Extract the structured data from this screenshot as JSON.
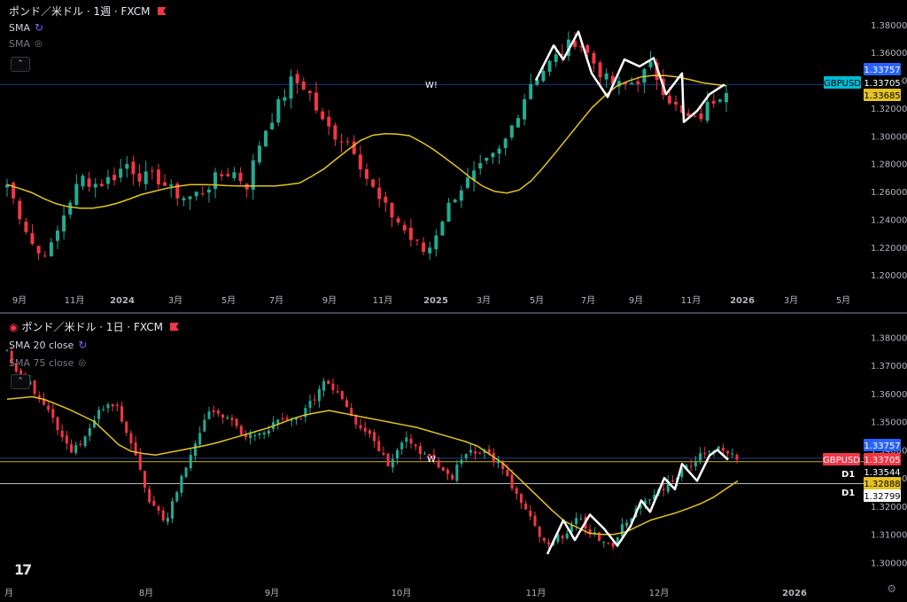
{
  "colors": {
    "up": "#22ab94",
    "down": "#f23645",
    "sma": "#e6c41d",
    "line": "#ffffff",
    "hline": "#1e3a8a"
  },
  "top": {
    "title": "ポンド／米ドル · 1週 · FXCM",
    "indicators": [
      {
        "label": "SMA",
        "icon": "circular-arrows-icon"
      },
      {
        "label": "SMA",
        "icon": "eye-off-icon",
        "hidden": true
      }
    ],
    "collapse_icon": "chevron-up-icon",
    "price_axis": [
      "1.38000",
      "1.36000",
      "1.34000",
      "1.32000",
      "1.30000",
      "1.28000",
      "1.26000",
      "1.24000",
      "1.22000",
      "1.20000"
    ],
    "time_axis": [
      "9月",
      "11月",
      "2024",
      "3月",
      "5月",
      "7月",
      "9月",
      "11月",
      "2025",
      "3月",
      "5月",
      "7月",
      "9月",
      "11月",
      "2026",
      "3月",
      "5月"
    ],
    "marker": "W!",
    "tags": [
      {
        "text": "1.33757"
      },
      {
        "text": "GBPUSD"
      },
      {
        "text": "1.33705"
      },
      {
        "text": "1.33685"
      }
    ],
    "range": [
      1.195,
      1.385
    ],
    "candles_anchors": [
      1.265,
      1.24,
      1.215,
      1.22,
      1.25,
      1.27,
      1.265,
      1.27,
      1.28,
      1.27,
      1.27,
      1.26,
      1.255,
      1.26,
      1.27,
      1.275,
      1.265,
      1.3,
      1.32,
      1.34,
      1.335,
      1.31,
      1.3,
      1.295,
      1.27,
      1.25,
      1.24,
      1.225,
      1.215,
      1.24,
      1.26,
      1.27,
      1.28,
      1.29,
      1.315,
      1.34,
      1.35,
      1.36,
      1.37,
      1.355,
      1.34,
      1.335,
      1.34,
      1.35,
      1.33,
      1.315,
      1.31,
      1.325,
      1.335
    ],
    "sma_anchors": [
      1.265,
      1.26,
      1.252,
      1.248,
      1.248,
      1.252,
      1.258,
      1.262,
      1.265,
      1.265,
      1.264,
      1.264,
      1.264,
      1.266,
      1.275,
      1.288,
      1.3,
      1.302,
      1.3,
      1.29,
      1.278,
      1.265,
      1.258,
      1.262,
      1.28,
      1.3,
      1.32,
      1.335,
      1.342,
      1.344,
      1.342,
      1.338,
      1.336
    ]
  },
  "bottom": {
    "title": "ポンド／米ドル · 1日 · FXCM",
    "indicators": [
      {
        "label": "SMA 20 close",
        "icon": "circular-arrows-icon"
      },
      {
        "label": "SMA 75 close",
        "icon": "eye-off-icon",
        "hidden": true
      }
    ],
    "collapse_icon": "chevron-up-icon",
    "price_axis": [
      "1.38000",
      "1.37000",
      "1.36000",
      "1.35000",
      "1.34000",
      "1.33000",
      "1.32000",
      "1.31000",
      "1.30000"
    ],
    "time_axis": [
      "月",
      "8月",
      "9月",
      "10月",
      "11月",
      "12月",
      "2026"
    ],
    "marker": "W",
    "levels": [
      {
        "label": "D1",
        "value": 1.32888
      },
      {
        "label": "D1",
        "value": 1.32799
      }
    ],
    "tags": [
      {
        "text": "1.33757"
      },
      {
        "text": "GBPUSD"
      },
      {
        "text": "1.33705"
      },
      {
        "text": "1.33544"
      },
      {
        "text": "1.32888"
      },
      {
        "text": "1.32799"
      }
    ],
    "range": [
      1.297,
      1.382
    ],
    "candles_anchors": [
      1.375,
      1.365,
      1.36,
      1.35,
      1.34,
      1.345,
      1.355,
      1.355,
      1.34,
      1.32,
      1.315,
      1.33,
      1.345,
      1.355,
      1.35,
      1.345,
      1.345,
      1.35,
      1.35,
      1.355,
      1.365,
      1.36,
      1.35,
      1.345,
      1.335,
      1.345,
      1.34,
      1.335,
      1.33,
      1.34,
      1.34,
      1.335,
      1.325,
      1.315,
      1.305,
      1.31,
      1.315,
      1.31,
      1.305,
      1.315,
      1.32,
      1.325,
      1.33,
      1.335,
      1.34,
      1.34,
      1.337
    ],
    "sma_anchors": [
      1.358,
      1.359,
      1.355,
      1.35,
      1.34,
      1.338,
      1.34,
      1.342,
      1.345,
      1.348,
      1.352,
      1.354,
      1.352,
      1.35,
      1.348,
      1.345,
      1.342,
      1.335,
      1.325,
      1.315,
      1.31,
      1.31,
      1.315,
      1.318,
      1.322,
      1.329
    ]
  },
  "logo_icon": "tradingview-logo-icon",
  "settings_icon": "gear-icon"
}
